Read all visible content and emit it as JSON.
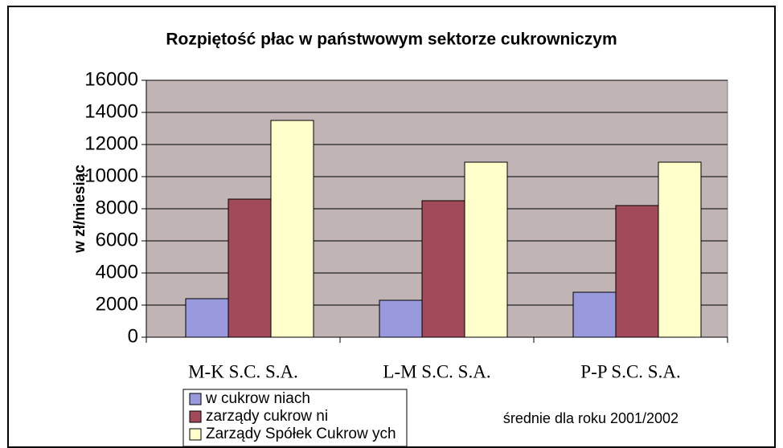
{
  "chart_data": {
    "type": "bar",
    "title": "Rozpiętość płac w państwowym sektorze cukrowniczym",
    "y_label": "w zł/miesiąc",
    "annotation": "średnie dla roku 2001/2002",
    "categories": [
      "M-K S.C. S.A.",
      "L-M S.C. S.A.",
      "P-P S.C. S.A."
    ],
    "series": [
      {
        "name": "w  cukrow niach",
        "color": "#9999dd",
        "values": [
          2400,
          2300,
          2800
        ]
      },
      {
        "name": "zarządy cukrow ni",
        "color": "#a34a5a",
        "values": [
          8600,
          8500,
          8200
        ]
      },
      {
        "name": "Zarządy Spółek Cukrow ych",
        "color": "#ffffcc",
        "values": [
          13500,
          10900,
          10900
        ]
      }
    ],
    "ylim": [
      0,
      16000
    ],
    "yticks": [
      0,
      2000,
      4000,
      6000,
      8000,
      10000,
      12000,
      14000,
      16000
    ],
    "grid": true,
    "plot_background": "#c0b4b4"
  }
}
